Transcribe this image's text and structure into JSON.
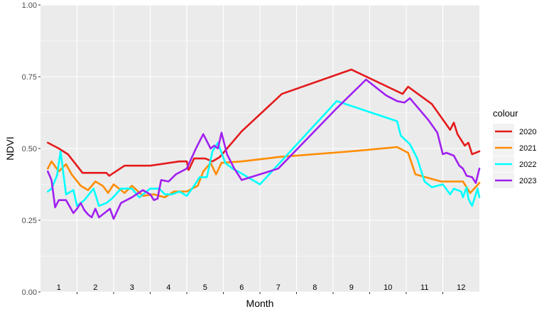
{
  "chart_data": {
    "type": "line",
    "title": "",
    "xlabel": "Month",
    "ylabel": "NDVI",
    "xlim": [
      0.5,
      12.5
    ],
    "ylim": [
      0,
      1
    ],
    "x_ticks": [
      1,
      2,
      3,
      4,
      5,
      6,
      7,
      8,
      9,
      10,
      11,
      12
    ],
    "x_tick_labels": [
      "1",
      "2",
      "3",
      "4",
      "5",
      "6",
      "7",
      "8",
      "9",
      "10",
      "11",
      "12"
    ],
    "y_ticks": [
      0,
      0.25,
      0.5,
      0.75,
      1
    ],
    "y_tick_labels": [
      "0.00",
      "0.25",
      "0.50",
      "0.75",
      "1.00"
    ],
    "grid": true,
    "legend": {
      "title": "colour",
      "position": "right"
    },
    "series": [
      {
        "name": "2020",
        "color": "#e41a1c",
        "x": [
          0.7,
          1.0,
          1.25,
          1.65,
          2.3,
          2.38,
          2.8,
          3.5,
          4.3,
          4.5,
          4.55,
          4.7,
          5.0,
          5.2,
          5.4,
          6.0,
          7.1,
          9.0,
          10.4,
          10.55,
          11.2,
          11.7,
          11.8,
          11.9,
          12.1,
          12.2,
          12.3,
          12.5
        ],
        "y": [
          0.52,
          0.5,
          0.48,
          0.415,
          0.415,
          0.405,
          0.44,
          0.44,
          0.455,
          0.455,
          0.425,
          0.465,
          0.465,
          0.455,
          0.47,
          0.56,
          0.69,
          0.775,
          0.69,
          0.715,
          0.655,
          0.565,
          0.59,
          0.55,
          0.51,
          0.52,
          0.48,
          0.49
        ]
      },
      {
        "name": "2021",
        "color": "#ff8c00",
        "x": [
          0.7,
          0.8,
          1.0,
          1.2,
          1.35,
          1.6,
          1.8,
          2.0,
          2.2,
          2.35,
          2.5,
          2.8,
          3.0,
          3.3,
          3.6,
          3.9,
          4.15,
          4.5,
          4.8,
          4.95,
          5.15,
          5.3,
          5.45,
          6.0,
          7.0,
          9.0,
          10.25,
          10.55,
          10.75,
          11.45,
          11.9,
          12.05,
          12.25,
          12.5
        ],
        "y": [
          0.43,
          0.455,
          0.42,
          0.445,
          0.41,
          0.37,
          0.355,
          0.385,
          0.37,
          0.345,
          0.375,
          0.345,
          0.37,
          0.335,
          0.34,
          0.33,
          0.35,
          0.35,
          0.37,
          0.42,
          0.45,
          0.41,
          0.45,
          0.455,
          0.47,
          0.49,
          0.505,
          0.485,
          0.41,
          0.385,
          0.385,
          0.385,
          0.345,
          0.38
        ]
      },
      {
        "name": "2022",
        "color": "#00ffff",
        "x": [
          0.7,
          0.8,
          0.95,
          1.05,
          1.2,
          1.4,
          1.5,
          1.7,
          1.95,
          2.1,
          2.3,
          2.45,
          2.7,
          3.0,
          3.2,
          3.5,
          3.75,
          3.9,
          4.1,
          4.3,
          4.5,
          4.7,
          4.85,
          5.05,
          5.2,
          5.35,
          5.55,
          5.75,
          5.9,
          6.5,
          8.6,
          10.25,
          10.35,
          10.6,
          10.8,
          11.0,
          11.2,
          11.5,
          11.7,
          11.8,
          12.0,
          12.05,
          12.15,
          12.2,
          12.3,
          12.45,
          12.5
        ],
        "y": [
          0.35,
          0.36,
          0.405,
          0.49,
          0.34,
          0.355,
          0.3,
          0.32,
          0.36,
          0.3,
          0.31,
          0.325,
          0.36,
          0.36,
          0.33,
          0.36,
          0.36,
          0.34,
          0.34,
          0.35,
          0.335,
          0.37,
          0.4,
          0.4,
          0.49,
          0.52,
          0.45,
          0.43,
          0.42,
          0.375,
          0.665,
          0.595,
          0.545,
          0.515,
          0.465,
          0.385,
          0.365,
          0.375,
          0.34,
          0.36,
          0.35,
          0.33,
          0.365,
          0.325,
          0.3,
          0.36,
          0.33
        ]
      },
      {
        "name": "2023",
        "color": "#a020f0",
        "x": [
          0.7,
          0.8,
          0.9,
          1.0,
          1.2,
          1.4,
          1.5,
          1.6,
          1.7,
          1.8,
          1.9,
          2.0,
          2.1,
          2.3,
          2.4,
          2.5,
          2.7,
          3.0,
          3.3,
          3.5,
          3.6,
          3.7,
          3.8,
          4.0,
          4.2,
          4.5,
          4.75,
          4.95,
          5.15,
          5.25,
          5.35,
          5.45,
          5.6,
          5.8,
          6.0,
          7.0,
          8.6,
          9.4,
          9.95,
          10.25,
          10.45,
          10.6,
          11.1,
          11.35,
          11.5,
          11.6,
          11.8,
          11.95,
          12.05,
          12.15,
          12.3,
          12.4,
          12.5
        ],
        "y": [
          0.42,
          0.39,
          0.295,
          0.32,
          0.32,
          0.275,
          0.29,
          0.31,
          0.285,
          0.27,
          0.26,
          0.29,
          0.26,
          0.28,
          0.29,
          0.255,
          0.31,
          0.33,
          0.355,
          0.34,
          0.32,
          0.325,
          0.39,
          0.385,
          0.41,
          0.43,
          0.5,
          0.55,
          0.5,
          0.51,
          0.5,
          0.555,
          0.48,
          0.43,
          0.39,
          0.43,
          0.64,
          0.74,
          0.685,
          0.665,
          0.66,
          0.675,
          0.6,
          0.555,
          0.48,
          0.485,
          0.475,
          0.44,
          0.43,
          0.405,
          0.4,
          0.38,
          0.43
        ]
      }
    ]
  }
}
